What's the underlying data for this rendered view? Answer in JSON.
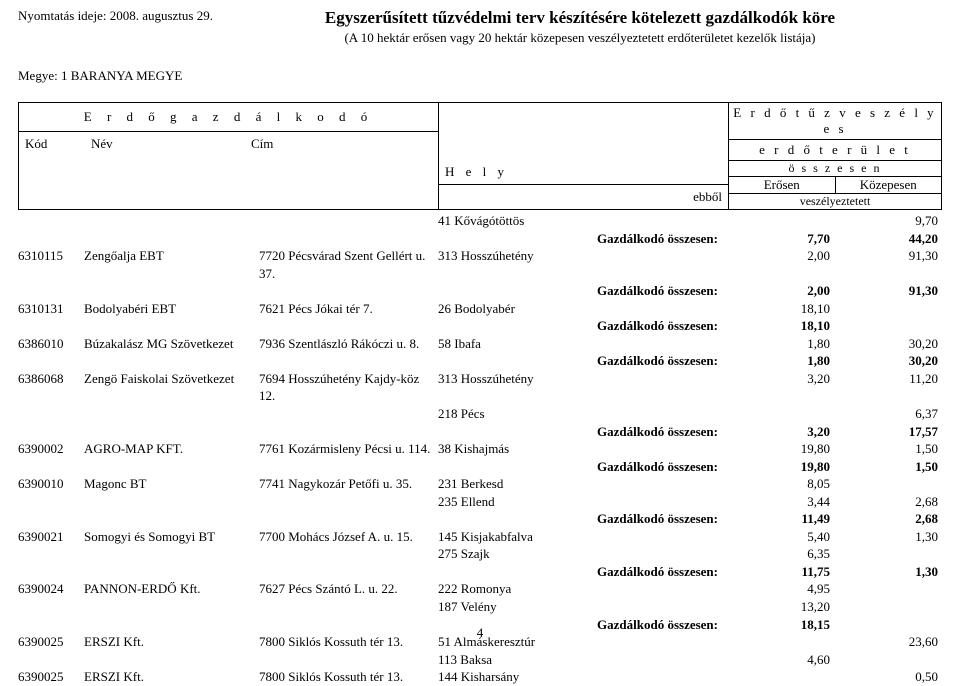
{
  "header": {
    "print_date": "Nyomtatás ideje: 2008. augusztus 29.",
    "main_title": "Egyszerűsített tűzvédelmi terv készítésére kötelezett gazdálkodók köre",
    "subtitle": "(A 10 hektár erősen vagy 20 hektár közepesen veszélyeztetett erdőterületet kezelők listája)",
    "county": "Megye: 1 BARANYA MEGYE"
  },
  "columns": {
    "erdogazd": "E r d ő g a z d á l k o d ó",
    "kod": "Kód",
    "nev": "Név",
    "cim": "Cím",
    "hely": "H e l y",
    "ebbol": "ebből",
    "tuzveszely1": "E r d ő t ű z v e s z é l y e s",
    "tuzveszely2": "e r d ő t e r ü l e t",
    "osszesen": "ö s s z e s e n",
    "erosen": "Erősen",
    "kozepesen": "Közepesen",
    "veszely": "veszélyeztetett"
  },
  "total_label": "Gazdálkodó összesen:",
  "rows": [
    {
      "kod": "",
      "nev": "",
      "cim": "",
      "hely": "41 Kővágótöttös",
      "erosen": "",
      "kozep": "9,70"
    },
    {
      "total": true,
      "erosen": "7,70",
      "kozep": "44,20"
    },
    {
      "kod": "6310115",
      "nev": "Zengőalja EBT",
      "cim": "7720 Pécsvárad Szent Gellért u. 37.",
      "hely": "313 Hosszúhetény",
      "erosen": "2,00",
      "kozep": "91,30"
    },
    {
      "total": true,
      "erosen": "2,00",
      "kozep": "91,30"
    },
    {
      "kod": "6310131",
      "nev": "Bodolyabéri EBT",
      "cim": "7621 Pécs Jókai tér 7.",
      "hely": "26 Bodolyabér",
      "erosen": "18,10",
      "kozep": ""
    },
    {
      "total": true,
      "erosen": "18,10",
      "kozep": ""
    },
    {
      "kod": "6386010",
      "nev": "Búzakalász MG Szövetkezet",
      "cim": "7936 Szentlászló Rákóczi u. 8.",
      "hely": "58 Ibafa",
      "erosen": "1,80",
      "kozep": "30,20"
    },
    {
      "total": true,
      "erosen": "1,80",
      "kozep": "30,20"
    },
    {
      "kod": "6386068",
      "nev": "Zengö Faiskolai Szövetkezet",
      "cim": "7694 Hosszúhetény Kajdy-köz 12.",
      "hely": "313 Hosszúhetény",
      "erosen": "3,20",
      "kozep": "11,20"
    },
    {
      "kod": "",
      "nev": "",
      "cim": "",
      "hely": "218 Pécs",
      "erosen": "",
      "kozep": "6,37"
    },
    {
      "total": true,
      "erosen": "3,20",
      "kozep": "17,57"
    },
    {
      "kod": "6390002",
      "nev": "AGRO-MAP KFT.",
      "cim": "7761 Kozármisleny Pécsi u. 114.",
      "hely": "38 Kishajmás",
      "erosen": "19,80",
      "kozep": "1,50"
    },
    {
      "total": true,
      "erosen": "19,80",
      "kozep": "1,50"
    },
    {
      "kod": "6390010",
      "nev": "Magonc BT",
      "cim": "7741 Nagykozár Petőfi u. 35.",
      "hely": "231 Berkesd",
      "erosen": "8,05",
      "kozep": ""
    },
    {
      "kod": "",
      "nev": "",
      "cim": "",
      "hely": "235 Ellend",
      "erosen": "3,44",
      "kozep": "2,68"
    },
    {
      "total": true,
      "erosen": "11,49",
      "kozep": "2,68"
    },
    {
      "kod": "6390021",
      "nev": "Somogyi és Somogyi BT",
      "cim": "7700 Mohács József A. u. 15.",
      "hely": "145 Kisjakabfalva",
      "erosen": "5,40",
      "kozep": "1,30"
    },
    {
      "kod": "",
      "nev": "",
      "cim": "",
      "hely": "275 Szajk",
      "erosen": "6,35",
      "kozep": ""
    },
    {
      "total": true,
      "erosen": "11,75",
      "kozep": "1,30"
    },
    {
      "kod": "6390024",
      "nev": "PANNON-ERDŐ Kft.",
      "cim": "7627 Pécs Szántó L. u. 22.",
      "hely": "222 Romonya",
      "erosen": "4,95",
      "kozep": ""
    },
    {
      "kod": "",
      "nev": "",
      "cim": "",
      "hely": "187 Velény",
      "erosen": "13,20",
      "kozep": ""
    },
    {
      "total": true,
      "erosen": "18,15",
      "kozep": ""
    },
    {
      "kod": "6390025",
      "nev": "ERSZI Kft.",
      "cim": "7800 Siklós Kossuth tér 13.",
      "hely": "51 Almáskeresztúr",
      "erosen": "",
      "kozep": "23,60"
    },
    {
      "kod": "",
      "nev": "",
      "cim": "",
      "hely": "113 Baksa",
      "erosen": "4,60",
      "kozep": ""
    },
    {
      "kod": "6390025",
      "nev": "ERSZI Kft.",
      "cim": "7800 Siklós Kossuth tér 13.",
      "hely": "144 Kisharsány",
      "erosen": "",
      "kozep": "0,50"
    }
  ],
  "page_number": "4"
}
